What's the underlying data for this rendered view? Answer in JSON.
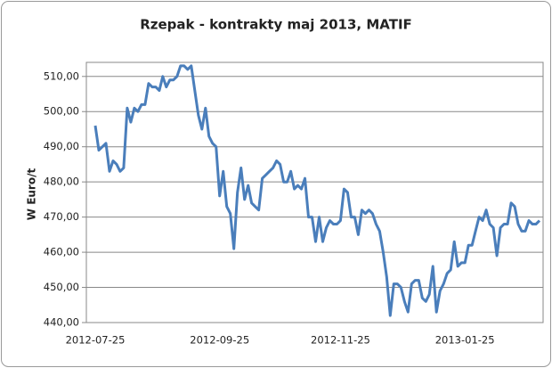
{
  "chart_data": {
    "type": "line",
    "title": "Rzepak - kontrakty maj 2013, MATIF",
    "y_label": "W Euro/t",
    "color": "#4a7ebb",
    "grid": true,
    "categories": [
      "2012-07-25",
      null,
      null,
      null,
      null,
      null,
      null,
      null,
      null,
      null,
      null,
      null,
      null,
      null,
      null,
      null,
      null,
      null,
      null,
      null,
      null,
      null,
      null,
      null,
      null,
      null,
      null,
      null,
      null,
      null,
      null,
      null,
      null,
      null,
      null,
      "2012-09-25",
      null,
      null,
      null,
      null,
      null,
      null,
      null,
      null,
      null,
      null,
      null,
      null,
      null,
      null,
      null,
      null,
      null,
      null,
      null,
      null,
      null,
      null,
      null,
      null,
      null,
      null,
      null,
      null,
      null,
      null,
      null,
      null,
      null,
      "2012-11-25",
      null,
      null,
      null,
      null,
      null,
      null,
      null,
      null,
      null,
      null,
      null,
      null,
      null,
      null,
      null,
      null,
      null,
      null,
      null,
      null,
      null,
      null,
      null,
      null,
      null,
      null,
      null,
      null,
      null,
      null,
      null,
      null,
      null,
      null,
      "2013-01-25",
      null,
      null,
      null,
      null,
      null,
      null,
      null,
      null,
      null,
      null,
      null,
      null,
      null,
      null,
      null,
      null,
      null,
      null,
      null,
      null,
      null
    ],
    "values": [
      496,
      489,
      490,
      491,
      483,
      486,
      485,
      483,
      484,
      501,
      497,
      501,
      500,
      502,
      502,
      508,
      507,
      507,
      506,
      510,
      507,
      509,
      509,
      510,
      513,
      513,
      512,
      513,
      506,
      499,
      495,
      501,
      493,
      491,
      490,
      476,
      483,
      473,
      471,
      461,
      477,
      484,
      475,
      479,
      474,
      473,
      472,
      481,
      482,
      483,
      484,
      486,
      485,
      480,
      480,
      483,
      478,
      479,
      478,
      481,
      470,
      470,
      463,
      470,
      463,
      467,
      469,
      468,
      468,
      469,
      478,
      477,
      470,
      470,
      465,
      472,
      471,
      472,
      471,
      468,
      466,
      460,
      453,
      442,
      451,
      451,
      450,
      446,
      443,
      451,
      452,
      452,
      447,
      446,
      448,
      456,
      443,
      449,
      451,
      454,
      455,
      463,
      456,
      457,
      457,
      462,
      462,
      466,
      470,
      469,
      472,
      468,
      467,
      459,
      467,
      468,
      468,
      474,
      473,
      468,
      466,
      466,
      469,
      468,
      468,
      469
    ],
    "ylim": [
      440,
      514
    ],
    "yticks": [
      {
        "value": 440,
        "label": "440,00"
      },
      {
        "value": 450,
        "label": "450,00"
      },
      {
        "value": 460,
        "label": "460,00"
      },
      {
        "value": 470,
        "label": "470,00"
      },
      {
        "value": 480,
        "label": "480,00"
      },
      {
        "value": 490,
        "label": "490,00"
      },
      {
        "value": 500,
        "label": "500,00"
      },
      {
        "value": 510,
        "label": "510,00"
      }
    ]
  }
}
